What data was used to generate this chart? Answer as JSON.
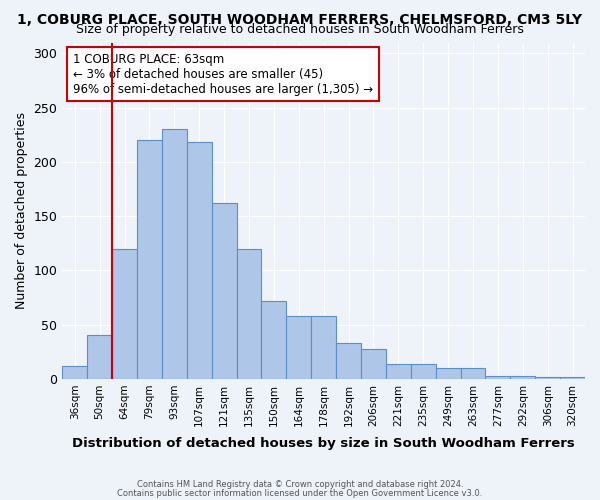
{
  "title": "1, COBURG PLACE, SOUTH WOODHAM FERRERS, CHELMSFORD, CM3 5LY",
  "subtitle": "Size of property relative to detached houses in South Woodham Ferrers",
  "xlabel": "Distribution of detached houses by size in South Woodham Ferrers",
  "ylabel": "Number of detached properties",
  "bin_labels": [
    "36sqm",
    "50sqm",
    "64sqm",
    "79sqm",
    "93sqm",
    "107sqm",
    "121sqm",
    "135sqm",
    "150sqm",
    "164sqm",
    "178sqm",
    "192sqm",
    "206sqm",
    "221sqm",
    "235sqm",
    "249sqm",
    "263sqm",
    "277sqm",
    "292sqm",
    "306sqm",
    "320sqm"
  ],
  "bar_values": [
    12,
    40,
    120,
    220,
    230,
    218,
    162,
    120,
    72,
    58,
    58,
    33,
    28,
    14,
    14,
    10,
    10,
    3,
    3,
    2,
    2
  ],
  "bar_color": "#aec6e8",
  "bar_edge_color": "#5b8fc9",
  "vline_x_idx": 2,
  "vline_color": "#cc0000",
  "annotation_box_text": "1 COBURG PLACE: 63sqm\n← 3% of detached houses are smaller (45)\n96% of semi-detached houses are larger (1,305) →",
  "annotation_box_color": "#cc0000",
  "ylim": [
    0,
    310
  ],
  "yticks": [
    0,
    50,
    100,
    150,
    200,
    250,
    300
  ],
  "footer_line1": "Contains HM Land Registry data © Crown copyright and database right 2024.",
  "footer_line2": "Contains public sector information licensed under the Open Government Licence v3.0.",
  "title_fontsize": 10,
  "subtitle_fontsize": 9,
  "background_color": "#eef2f9",
  "plot_background": "#eef2f9"
}
